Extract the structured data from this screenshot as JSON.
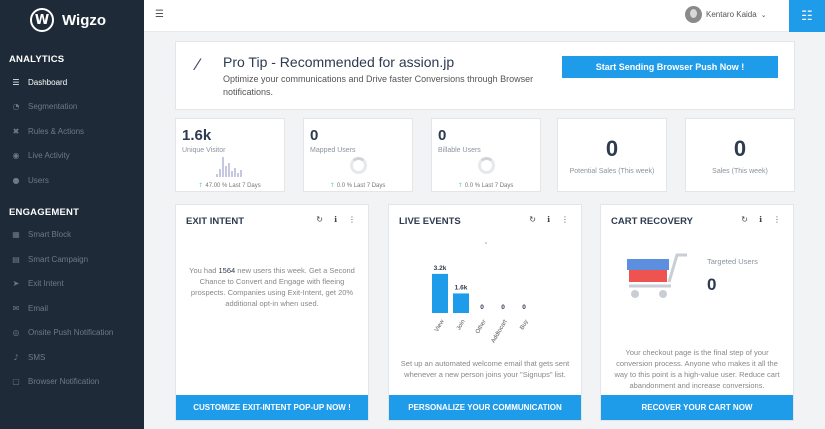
{
  "app": {
    "name": "Wigzo",
    "logo_letter": "W"
  },
  "sidebar": {
    "sections": [
      {
        "title": "ANALYTICS",
        "items": [
          {
            "label": "Dashboard",
            "icon": "dashboard-icon",
            "glyph": "☰",
            "active": true
          },
          {
            "label": "Segmentation",
            "icon": "segmentation-icon",
            "glyph": "◔",
            "active": false
          },
          {
            "label": "Rules & Actions",
            "icon": "rules-icon",
            "glyph": "✖",
            "active": false
          },
          {
            "label": "Live Activity",
            "icon": "eye-icon",
            "glyph": "◉",
            "active": false
          },
          {
            "label": "Users",
            "icon": "user-icon",
            "glyph": "●",
            "active": false
          }
        ]
      },
      {
        "title": "ENGAGEMENT",
        "items": [
          {
            "label": "Smart Block",
            "icon": "block-icon",
            "glyph": "▦",
            "active": false
          },
          {
            "label": "Smart Campaign",
            "icon": "campaign-icon",
            "glyph": "▤",
            "active": false
          },
          {
            "label": "Exit Intent",
            "icon": "rocket-icon",
            "glyph": "➤",
            "active": false
          },
          {
            "label": "Email",
            "icon": "email-icon",
            "glyph": "✉",
            "active": false
          },
          {
            "label": "Onsite Push Notification",
            "icon": "onsite-push-icon",
            "glyph": "◎",
            "active": false
          },
          {
            "label": "SMS",
            "icon": "bell-icon",
            "glyph": "♪",
            "active": false
          },
          {
            "label": "Browser Notification",
            "icon": "browser-icon",
            "glyph": "▢",
            "active": false
          }
        ]
      }
    ]
  },
  "header": {
    "user_name": "Kentaro Kaida"
  },
  "protip": {
    "title": "Pro Tip - Recommended for assion.jp",
    "text": "Optimize your communications and Drive faster Conversions through Browser notifications.",
    "cta": "Start Sending Browser Push Now !"
  },
  "stats": [
    {
      "value": "1.6k",
      "label": "Unique Visitor",
      "foot": "47.00 % Last 7 Days",
      "viz": "bars"
    },
    {
      "value": "0",
      "label": "Mapped Users",
      "foot": "0.0 % Last 7 Days",
      "viz": "ring"
    },
    {
      "value": "0",
      "label": "Billable Users",
      "foot": "0.0 % Last 7 Days",
      "viz": "ring"
    }
  ],
  "stats_center": [
    {
      "value": "0",
      "label": "Potential Sales (This week)"
    },
    {
      "value": "0",
      "label": "Sales (This week)"
    }
  ],
  "mini_bars": [
    0.15,
    0.4,
    1.0,
    0.55,
    0.7,
    0.3,
    0.45,
    0.2,
    0.35
  ],
  "panels": {
    "exit": {
      "title": "EXIT INTENT",
      "text_pre": "You had ",
      "text_num": "1564",
      "text_post": " new users this week. Get a Second Chance to Convert and Engage with fleeing prospects. Companies using Exit-Intent, get 20% additional opt-in when used.",
      "button": "CUSTOMIZE EXIT-INTENT POP-UP NOW !"
    },
    "live": {
      "title": "LIVE EVENTS",
      "text": "Set up an automated welcome email that gets sent whenever a new person joins your \"Signups\" list.",
      "button": "PERSONALIZE YOUR COMMUNICATION"
    },
    "cart": {
      "title": "CART RECOVERY",
      "targeted_label": "Targeted Users",
      "targeted_value": "0",
      "text": "Your checkout page is the final step of your conversion process. Anyone who makes it all the way to this point is a high-value user. Reduce cart abandonment and increase conversions.",
      "button": "RECOVER YOUR CART NOW"
    }
  },
  "chart_data": {
    "type": "bar",
    "categories": [
      "View",
      "Join",
      "Other",
      "Addtocart",
      "Buy"
    ],
    "values": [
      3200,
      1600,
      0,
      0,
      0
    ],
    "data_labels": [
      "3.2k",
      "1.6k",
      "0",
      "0",
      "0"
    ],
    "ylim": [
      0,
      3600
    ],
    "color": "#1e9be9"
  },
  "colors": {
    "accent": "#1e9be9",
    "sidebar": "#1e2a38",
    "up": "#3ab25f",
    "cart_red": "#ef5350",
    "cart_blue": "#5c8fe0"
  }
}
